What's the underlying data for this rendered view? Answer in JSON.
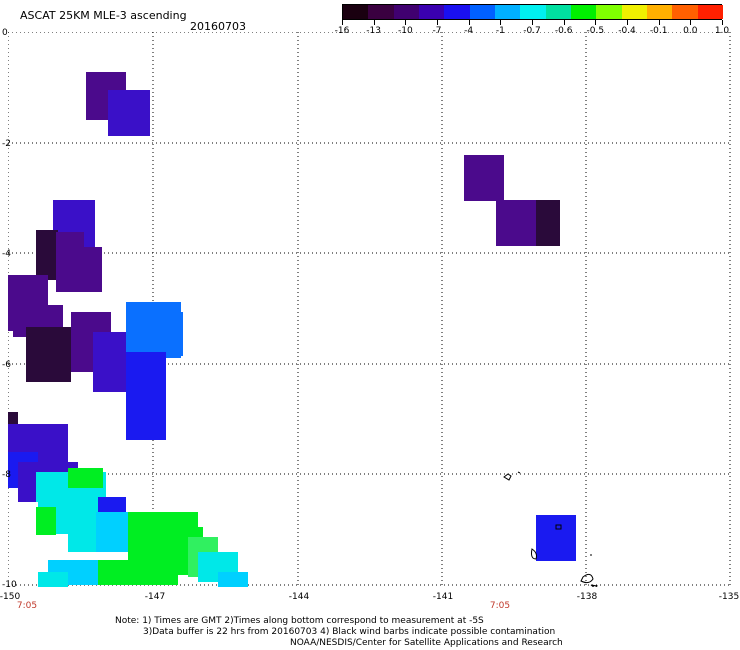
{
  "header": {
    "title": "ASCAT 25KM MLE-3 ascending",
    "date": "20160703"
  },
  "colorbar": {
    "labels": [
      "-16",
      "-13",
      "-10",
      "-7",
      "-4",
      "-1",
      "-0.7",
      "-0.6",
      "-0.5",
      "-0.4",
      "-0.1",
      "0.0",
      "1.0"
    ],
    "colors": [
      "#1a0010",
      "#3a0040",
      "#400070",
      "#3a00b0",
      "#1a10f0",
      "#0060ff",
      "#00b0ff",
      "#00f0f0",
      "#00e0a0",
      "#00f000",
      "#80ff00",
      "#f0f000",
      "#ffb000",
      "#ff6000",
      "#ff2000"
    ]
  },
  "axes": {
    "y_labels": [
      "0",
      "-2",
      "-4",
      "-6",
      "-8",
      "-10"
    ],
    "x_labels": [
      "-150",
      "-147",
      "-144",
      "-141",
      "-138",
      "-135"
    ]
  },
  "times": [
    "7:05",
    "7:05"
  ],
  "notes": {
    "line1": "Note: 1) Times are GMT 2)Times along bottom correspond to measurement at -5S",
    "line2": "3)Data buffer is 22 hrs from 20160703 4) Black wind barbs indicate possible contamination",
    "line3": "NOAA/NESDIS/Center for Satellite Applications and Research"
  },
  "colors": {
    "deep_purple": "#2a0a3a",
    "purple": "#4b0a8c",
    "indigo": "#3a10c8",
    "blue": "#1a1af0",
    "azure": "#0a70ff",
    "cyan": "#00e8e8",
    "aqua": "#00d0ff",
    "green": "#00ee22",
    "lime": "#30f060"
  }
}
